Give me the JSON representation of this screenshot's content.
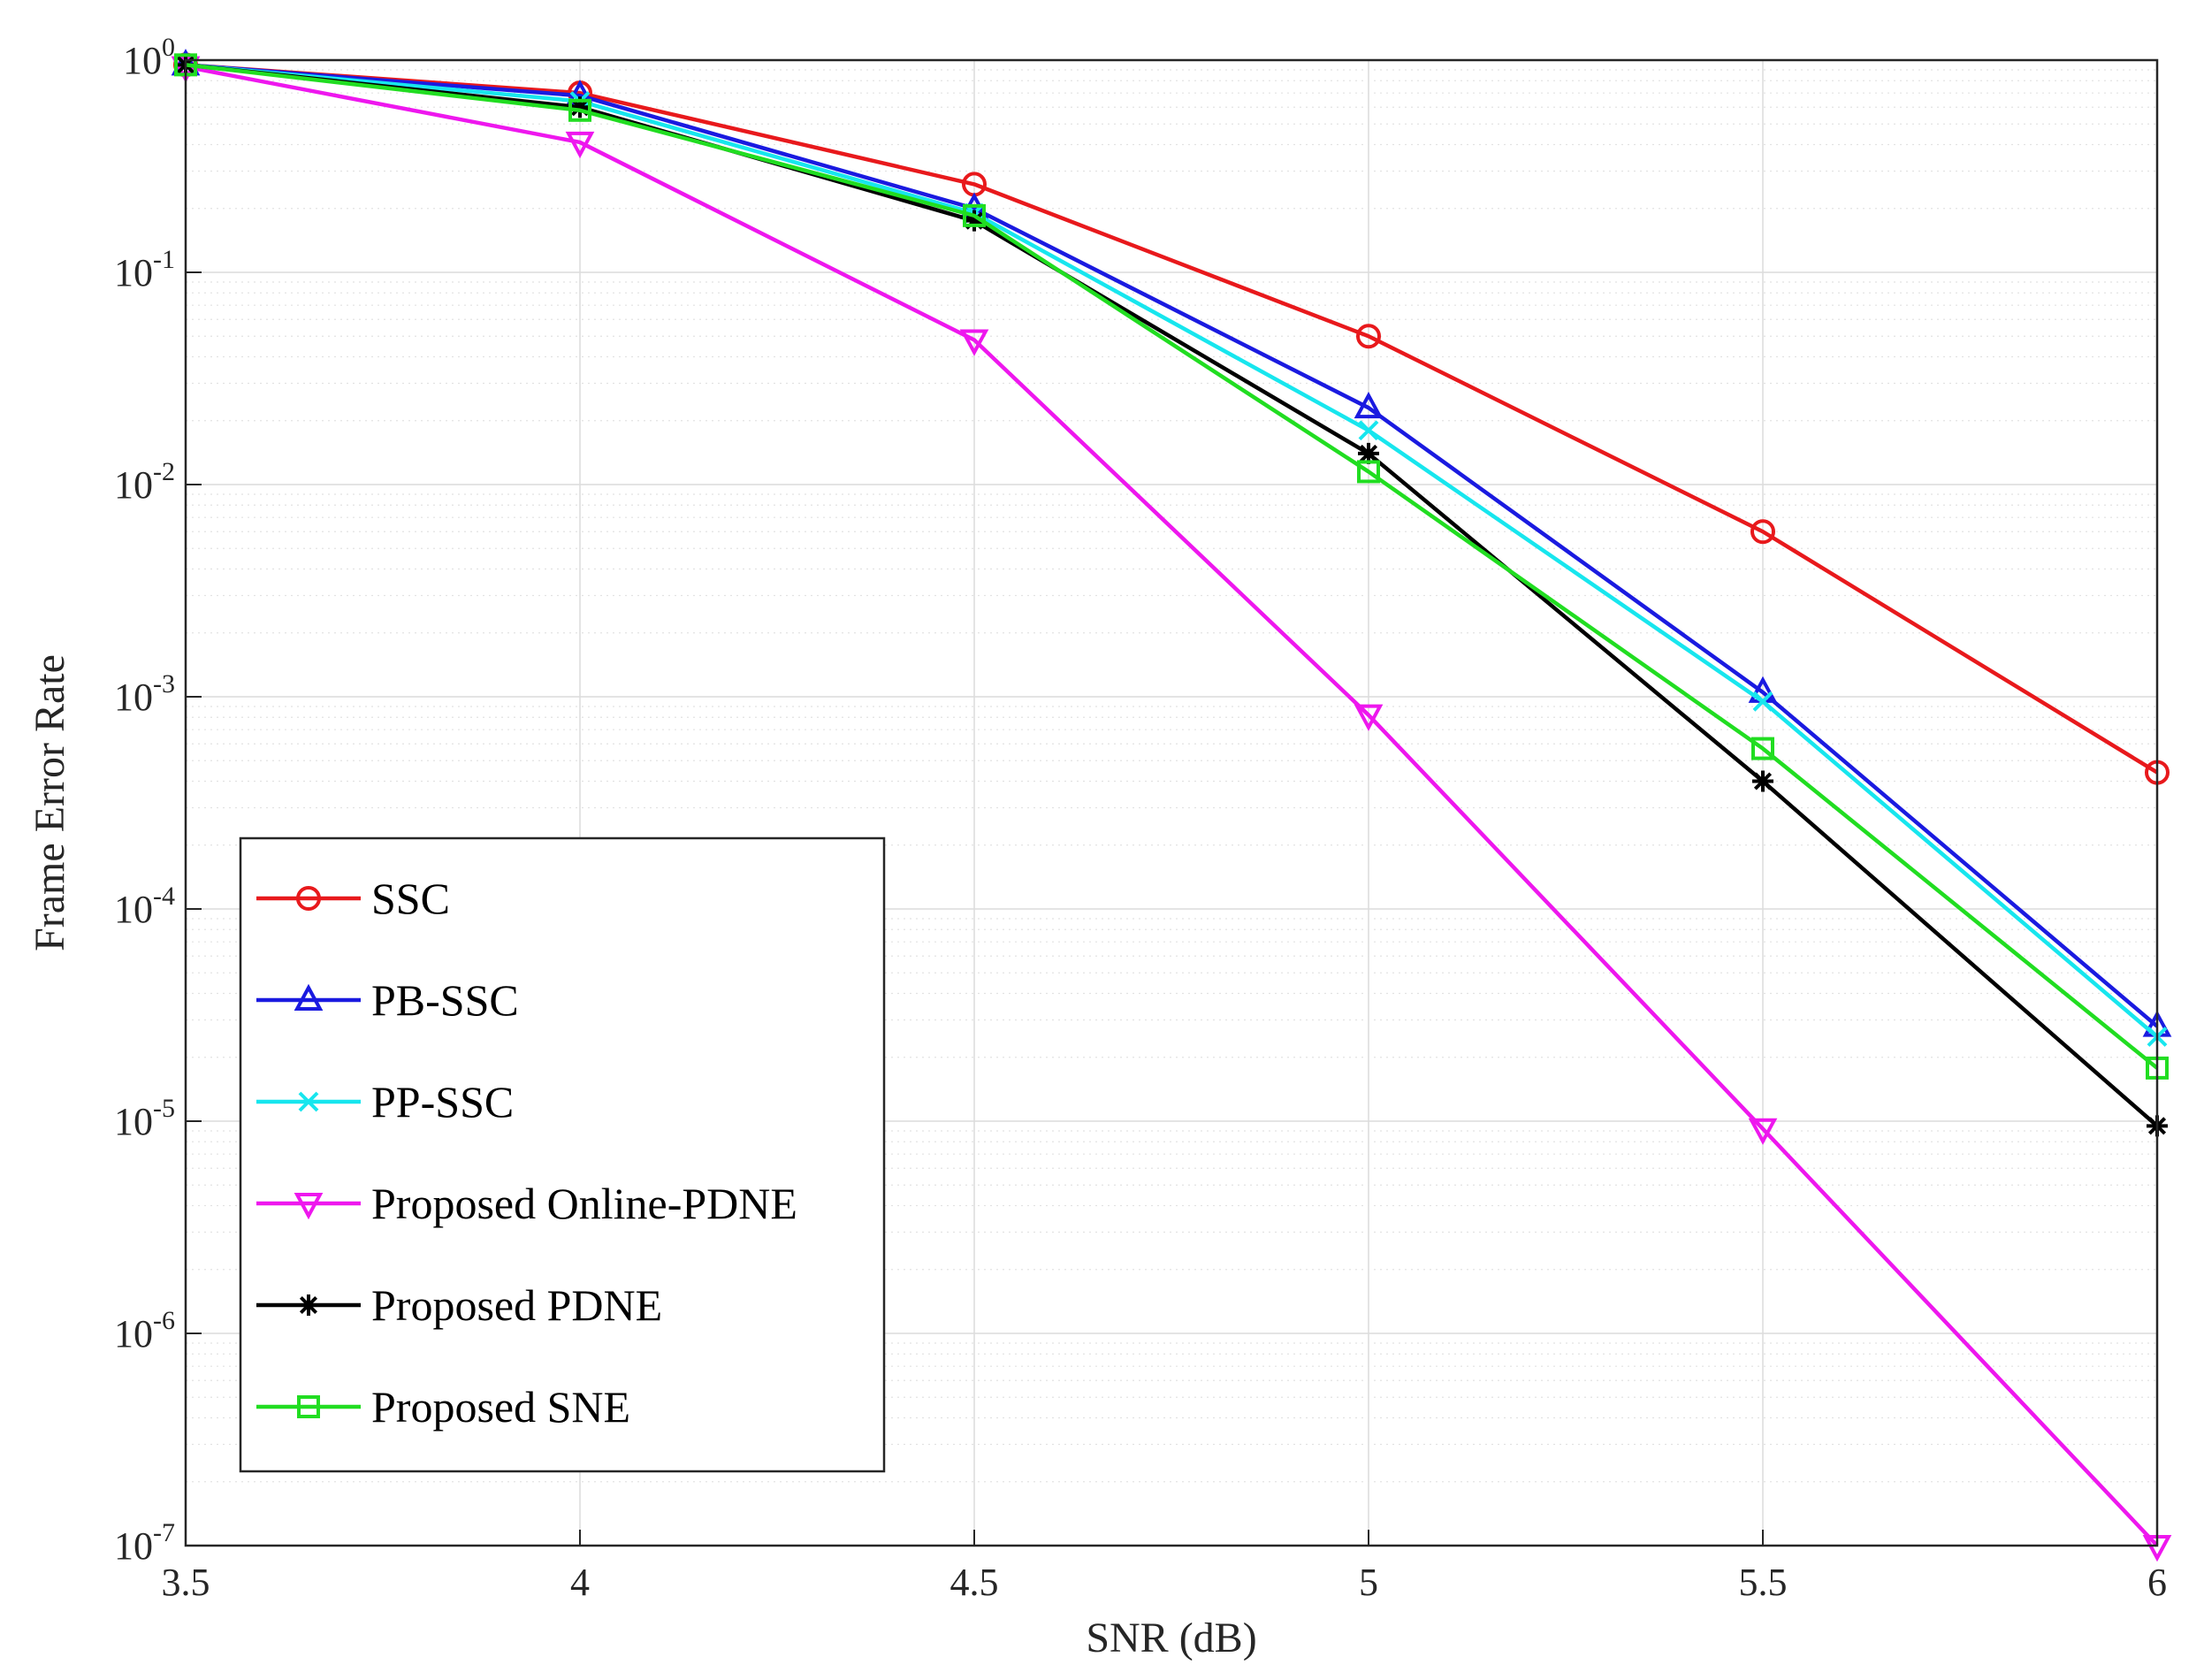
{
  "chart_data": {
    "type": "line",
    "title": "",
    "xlabel": "SNR (dB)",
    "ylabel": "Frame Error Rate",
    "x": [
      3.5,
      4,
      4.5,
      5,
      5.5,
      6
    ],
    "xlim": [
      3.5,
      6
    ],
    "xticks": [
      "3.5",
      "4",
      "4.5",
      "5",
      "5.5",
      "6"
    ],
    "yscale": "log",
    "ylim": [
      1e-07,
      1
    ],
    "yticks": [
      {
        "value": 1,
        "base": "10",
        "exp": "0"
      },
      {
        "value": 0.1,
        "base": "10",
        "exp": "-1"
      },
      {
        "value": 0.01,
        "base": "10",
        "exp": "-2"
      },
      {
        "value": 0.001,
        "base": "10",
        "exp": "-3"
      },
      {
        "value": 0.0001,
        "base": "10",
        "exp": "-4"
      },
      {
        "value": 1e-05,
        "base": "10",
        "exp": "-5"
      },
      {
        "value": 1e-06,
        "base": "10",
        "exp": "-6"
      },
      {
        "value": 1e-07,
        "base": "10",
        "exp": "-7"
      }
    ],
    "grid": true,
    "legend_position": "lower-left",
    "series": [
      {
        "name": "SSC",
        "color": "#e8191c",
        "marker": "circle",
        "values": [
          0.95,
          0.7,
          0.26,
          0.05,
          0.006,
          0.00044
        ]
      },
      {
        "name": "PB-SSC",
        "color": "#1a1ae0",
        "marker": "triangle-up",
        "values": [
          0.95,
          0.68,
          0.2,
          0.023,
          0.00105,
          2.8e-05
        ]
      },
      {
        "name": "PP-SSC",
        "color": "#17e6ee",
        "marker": "x",
        "values": [
          0.95,
          0.64,
          0.19,
          0.018,
          0.00095,
          2.5e-05
        ]
      },
      {
        "name": "Proposed Online-PDNE",
        "color": "#ee17ee",
        "marker": "triangle-down",
        "values": [
          0.93,
          0.41,
          0.048,
          0.00082,
          9.2e-06,
          1e-07
        ]
      },
      {
        "name": "Proposed PDNE",
        "color": "#000000",
        "marker": "asterisk",
        "values": [
          0.95,
          0.6,
          0.175,
          0.014,
          0.0004,
          9.5e-06
        ]
      },
      {
        "name": "Proposed SNE",
        "color": "#21dd21",
        "marker": "square",
        "values": [
          0.95,
          0.58,
          0.185,
          0.0115,
          0.00057,
          1.78e-05
        ]
      }
    ]
  }
}
